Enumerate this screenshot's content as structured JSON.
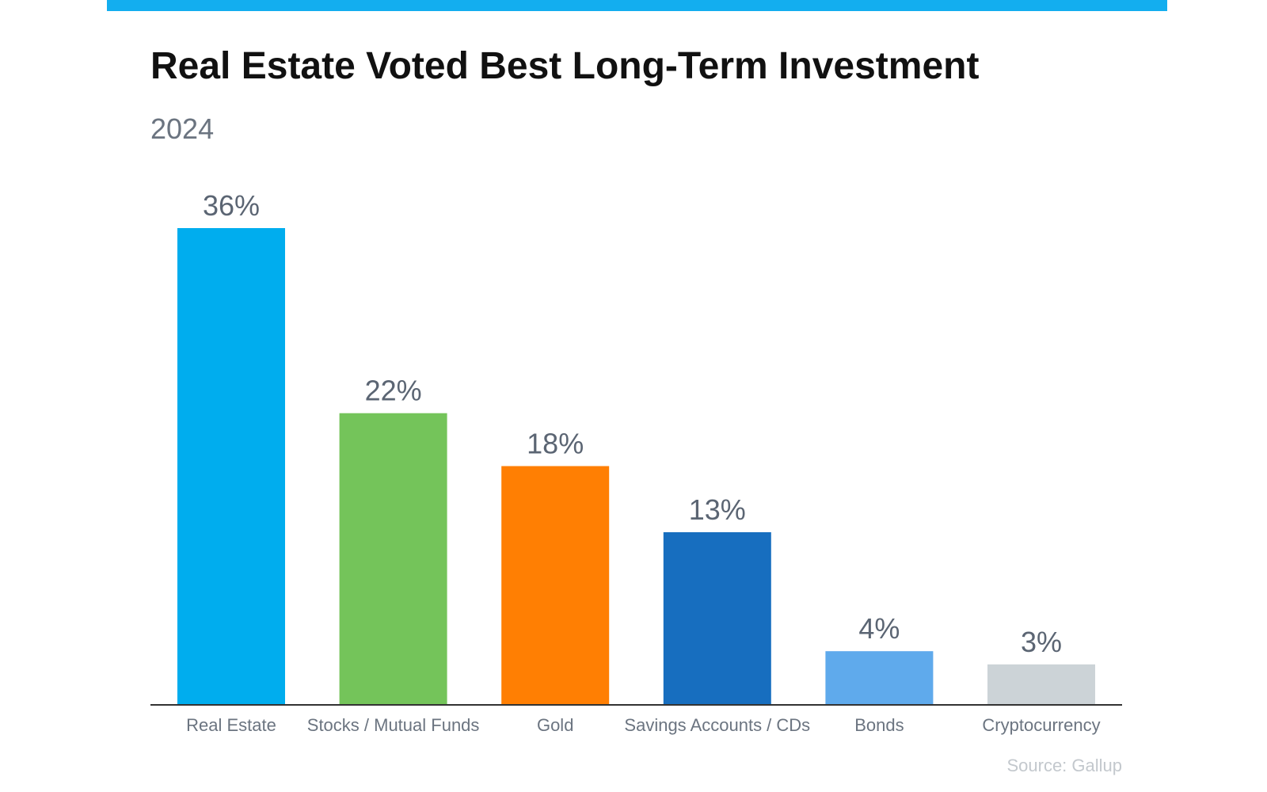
{
  "title": "Real Estate Voted Best Long-Term Investment",
  "subtitle": "2024",
  "source": "Source: Gallup",
  "accent_color": "#13aeef",
  "chart_data": {
    "type": "bar",
    "title": "Real Estate Voted Best Long-Term Investment",
    "subtitle": "2024",
    "categories": [
      "Real Estate",
      "Stocks / Mutual Funds",
      "Gold",
      "Savings Accounts / CDs",
      "Bonds",
      "Cryptocurrency"
    ],
    "values": [
      36,
      22,
      18,
      13,
      4,
      3
    ],
    "value_labels": [
      "36%",
      "22%",
      "18%",
      "13%",
      "4%",
      "3%"
    ],
    "colors": [
      "#00adee",
      "#74c45a",
      "#ff7f03",
      "#176ebf",
      "#5faaec",
      "#ccd3d7"
    ],
    "unit": "%",
    "ylim": [
      0,
      36
    ],
    "grid": false,
    "legend": "none",
    "xlabel": "",
    "ylabel": ""
  }
}
